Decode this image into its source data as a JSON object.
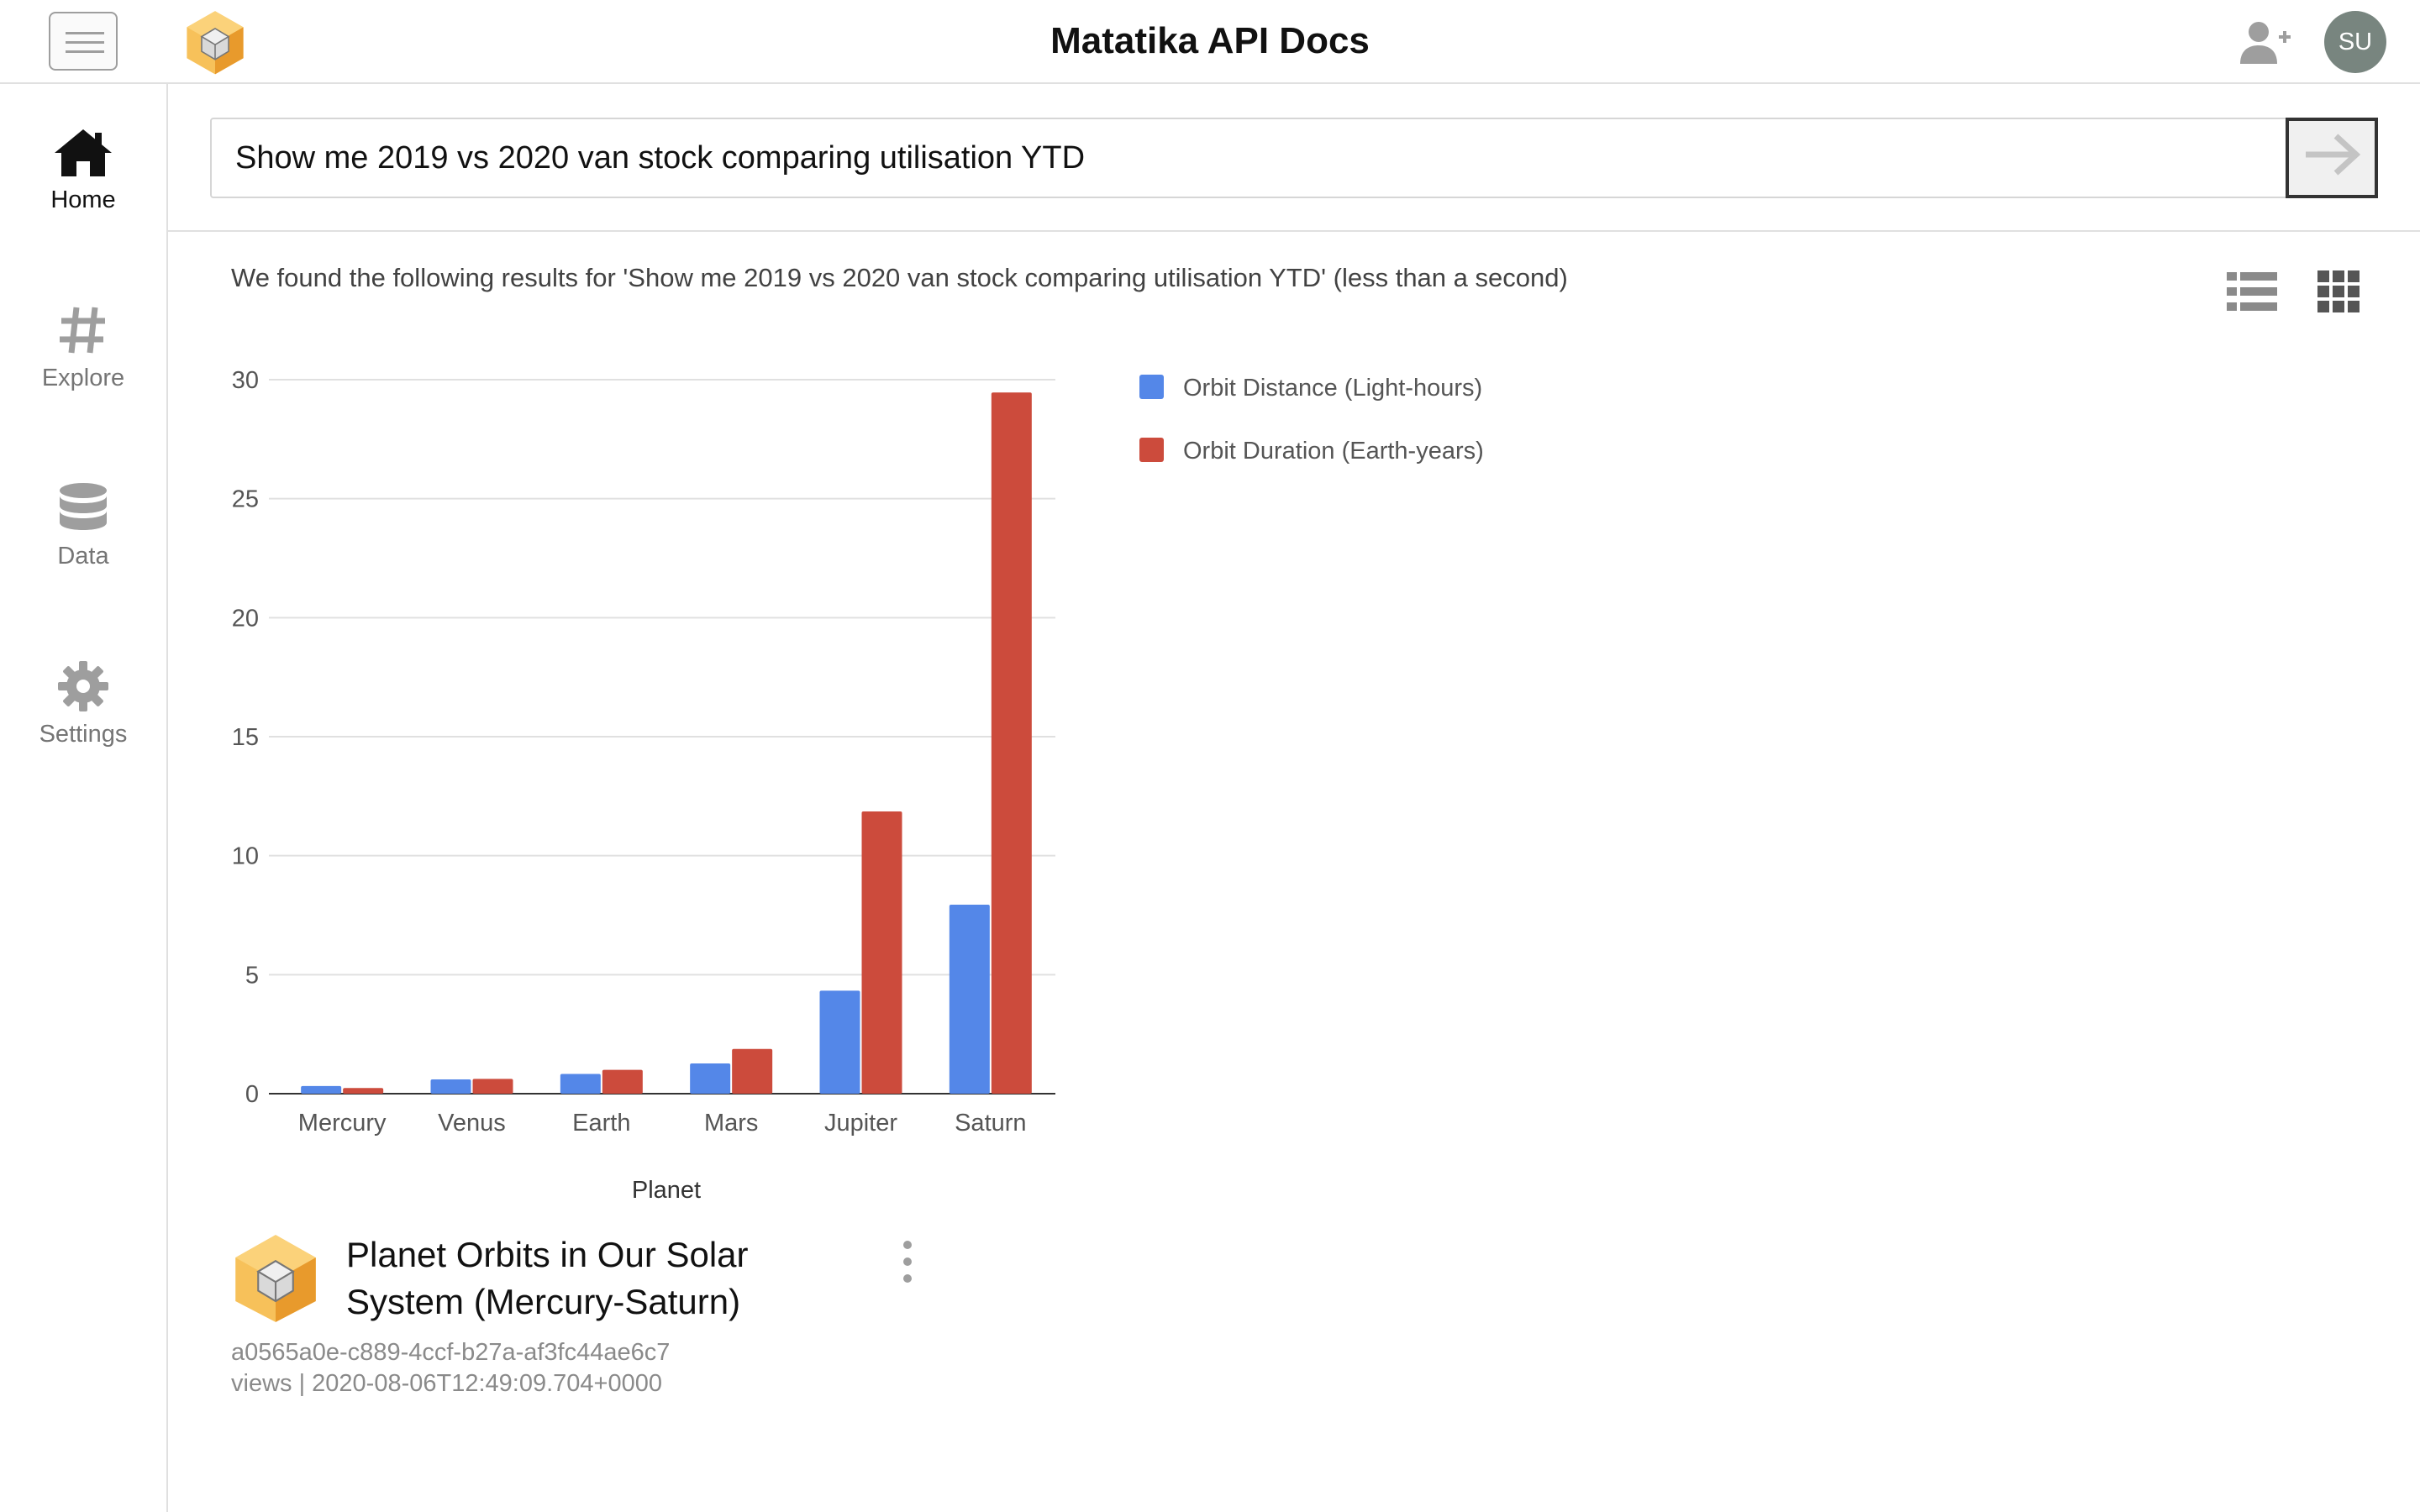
{
  "header": {
    "title": "Matatika API Docs",
    "avatar_initials": "SU",
    "menu_icon": "hamburger-icon",
    "add_user_icon": "add-user-icon"
  },
  "sidebar": {
    "items": [
      {
        "label": "Home",
        "icon": "home-icon",
        "active": true
      },
      {
        "label": "Explore",
        "icon": "hash-icon",
        "active": false
      },
      {
        "label": "Data",
        "icon": "database-icon",
        "active": false
      },
      {
        "label": "Settings",
        "icon": "gear-icon",
        "active": false
      }
    ]
  },
  "search": {
    "value": "Show me 2019 vs 2020 van stock comparing utilisation YTD",
    "submit_icon": "arrow-right-icon"
  },
  "results": {
    "summary": "We found the following results for 'Show me 2019 vs 2020 van stock comparing utilisation YTD' (less than a second)"
  },
  "colors": {
    "series_distance": "#5487e8",
    "series_duration": "#cc4b3c",
    "logo_orange": "#f5b040"
  },
  "chart_data": {
    "type": "bar",
    "categories": [
      "Mercury",
      "Venus",
      "Earth",
      "Mars",
      "Jupiter",
      "Saturn"
    ],
    "series": [
      {
        "name": "Orbit Distance (Light-hours)",
        "values": [
          0.32,
          0.6,
          0.83,
          1.27,
          4.33,
          7.94
        ]
      },
      {
        "name": "Orbit Duration (Earth-years)",
        "values": [
          0.24,
          0.62,
          1.0,
          1.88,
          11.86,
          29.46
        ]
      }
    ],
    "xlabel": "Planet",
    "ylabel": "",
    "ylim": [
      0,
      30
    ],
    "yticks": [
      0,
      5,
      10,
      15,
      20,
      25,
      30
    ],
    "grid": true,
    "legend_position": "right"
  },
  "card": {
    "title": "Planet Orbits in Our Solar System (Mercury-Saturn)",
    "id": "a0565a0e-c889-4ccf-b27a-af3fc44ae6c7",
    "meta": "views | 2020-08-06T12:49:09.704+0000",
    "more_icon": "more-vertical-icon"
  }
}
